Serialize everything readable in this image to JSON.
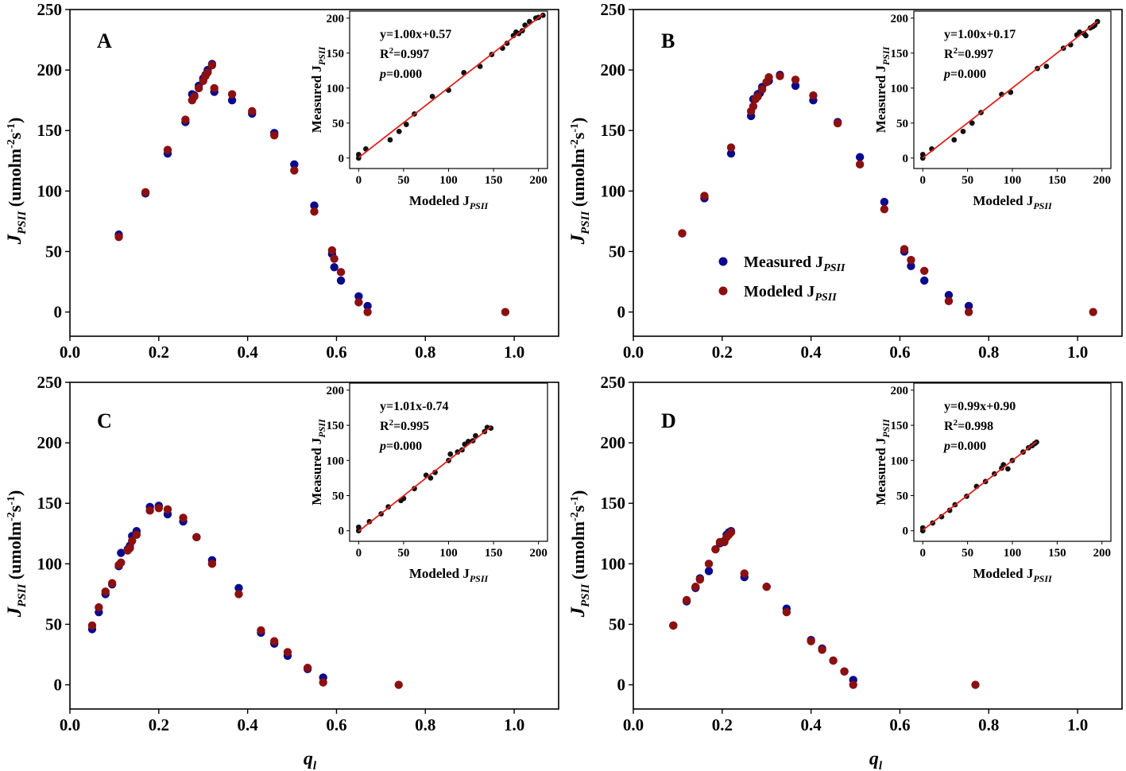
{
  "colors": {
    "measured": "#0a0a8c",
    "modeled": "#8b1010",
    "inset_points": "#111111",
    "fit_line": "#e0201c"
  },
  "axis_text": {
    "ylabel_main": "J",
    "ylabel_sub": "PSII",
    "ylabel_unit_a": " (umolm",
    "ylabel_exp1": "-2",
    "ylabel_unit_b": "s",
    "ylabel_exp2": "-1",
    "ylabel_close": ")",
    "xlabel_main": "q",
    "xlabel_sub": "l",
    "inset_ylabel_main": "Measured J",
    "inset_ylabel_sub": "PSII",
    "inset_xlabel_main": "Modeled J",
    "inset_xlabel_sub": "PSII",
    "eq_r2_a": "R",
    "eq_r2_exp": "2",
    "eq_p_main": "p"
  },
  "legend": {
    "measured_main": "Measured J",
    "measured_sub": "PSII",
    "modeled_main": "Modeled J",
    "modeled_sub": "PSII"
  },
  "chart_data": [
    {
      "type": "scatter",
      "panel": "A",
      "x_ticks": [
        "0.0",
        "0.2",
        "0.4",
        "0.6",
        "0.8",
        "1.0"
      ],
      "y_ticks": [
        "0",
        "50",
        "100",
        "150",
        "200",
        "250"
      ],
      "xlim": [
        0,
        1.1
      ],
      "ylim": [
        -20,
        250
      ],
      "series": [
        {
          "name": "Measured JPSII",
          "x": [
            0.11,
            0.17,
            0.22,
            0.26,
            0.275,
            0.28,
            0.29,
            0.3,
            0.305,
            0.31,
            0.32,
            0.325,
            0.365,
            0.41,
            0.46,
            0.505,
            0.55,
            0.59,
            0.595,
            0.61,
            0.65,
            0.67
          ],
          "y": [
            64,
            98,
            131,
            157,
            180,
            179,
            187,
            193,
            196,
            200,
            205,
            182,
            175,
            164,
            148,
            122,
            88,
            48,
            37,
            26,
            13,
            5
          ]
        },
        {
          "name": "Modeled JPSII",
          "x": [
            0.11,
            0.17,
            0.22,
            0.26,
            0.275,
            0.28,
            0.29,
            0.3,
            0.305,
            0.31,
            0.32,
            0.325,
            0.365,
            0.41,
            0.46,
            0.505,
            0.55,
            0.59,
            0.595,
            0.61,
            0.65,
            0.67,
            0.98
          ],
          "y": [
            62,
            99,
            134,
            159,
            175,
            178,
            185,
            191,
            195,
            198,
            204,
            185,
            180,
            166,
            146,
            117,
            83,
            51,
            44,
            33,
            8,
            0,
            0
          ]
        }
      ],
      "inset": {
        "equation": "y=1.00x+0.57",
        "r2_value": "=0.997",
        "p_value": "=0.000",
        "x_ticks": [
          "0",
          "50",
          "100",
          "150",
          "200"
        ],
        "y_ticks": [
          "0",
          "50",
          "100",
          "150",
          "200"
        ],
        "xlim": [
          -10,
          210
        ],
        "ylim": [
          -15,
          210
        ],
        "x": [
          0,
          0,
          8,
          35,
          45,
          53,
          62,
          82,
          100,
          117,
          135,
          148,
          160,
          165,
          172,
          175,
          178,
          182,
          185,
          190,
          197,
          200,
          205
        ],
        "y": [
          0,
          5,
          13,
          26,
          38,
          48,
          63,
          88,
          97,
          122,
          131,
          148,
          157,
          164,
          175,
          180,
          178,
          182,
          190,
          195,
          200,
          201,
          204
        ],
        "fit": {
          "slope": 1.0,
          "intercept": 0.57
        }
      }
    },
    {
      "type": "scatter",
      "panel": "B",
      "x_ticks": [
        "0.0",
        "0.2",
        "0.4",
        "0.6",
        "0.8",
        "1.0"
      ],
      "y_ticks": [
        "0",
        "50",
        "100",
        "150",
        "200",
        "250"
      ],
      "xlim": [
        0,
        1.1
      ],
      "ylim": [
        -20,
        250
      ],
      "series": [
        {
          "name": "Measured JPSII",
          "x": [
            0.11,
            0.16,
            0.22,
            0.265,
            0.27,
            0.28,
            0.285,
            0.29,
            0.3,
            0.305,
            0.33,
            0.365,
            0.405,
            0.46,
            0.51,
            0.565,
            0.61,
            0.625,
            0.655,
            0.71,
            0.755
          ],
          "y": [
            65,
            94,
            131,
            162,
            176,
            180,
            181,
            186,
            190,
            191,
            196,
            187,
            175,
            157,
            128,
            91,
            50,
            38,
            26,
            14,
            5
          ]
        },
        {
          "name": "Modeled JPSII",
          "x": [
            0.11,
            0.16,
            0.22,
            0.265,
            0.27,
            0.275,
            0.28,
            0.29,
            0.3,
            0.305,
            0.33,
            0.365,
            0.405,
            0.46,
            0.51,
            0.565,
            0.61,
            0.625,
            0.655,
            0.71,
            0.755,
            1.035
          ],
          "y": [
            65,
            96,
            136,
            166,
            170,
            176,
            178,
            184,
            190,
            194,
            195,
            192,
            179,
            156,
            122,
            85,
            52,
            43,
            34,
            9,
            0,
            0
          ]
        }
      ],
      "inset": {
        "equation": "y=1.00x+0.17",
        "r2_value": "=0.997",
        "p_value": "=0.000",
        "x_ticks": [
          "0",
          "50",
          "100",
          "150",
          "200"
        ],
        "y_ticks": [
          "0",
          "50",
          "100",
          "150",
          "200"
        ],
        "xlim": [
          -10,
          210
        ],
        "ylim": [
          -15,
          210
        ],
        "x": [
          0,
          0,
          10,
          35,
          45,
          55,
          65,
          88,
          98,
          128,
          138,
          157,
          165,
          172,
          175,
          180,
          182,
          187,
          190,
          192,
          195
        ],
        "y": [
          0,
          5,
          13,
          26,
          38,
          50,
          65,
          91,
          94,
          128,
          131,
          157,
          162,
          176,
          180,
          178,
          175,
          186,
          188,
          190,
          195
        ],
        "fit": {
          "slope": 1.0,
          "intercept": 0.17
        }
      }
    },
    {
      "type": "scatter",
      "panel": "C",
      "x_ticks": [
        "0.0",
        "0.2",
        "0.4",
        "0.6",
        "0.8",
        "1.0"
      ],
      "y_ticks": [
        "0",
        "50",
        "100",
        "150",
        "200",
        "250"
      ],
      "xlim": [
        0,
        1.1
      ],
      "ylim": [
        -20,
        250
      ],
      "series": [
        {
          "name": "Measured JPSII",
          "x": [
            0.05,
            0.065,
            0.08,
            0.095,
            0.11,
            0.115,
            0.13,
            0.135,
            0.14,
            0.15,
            0.18,
            0.2,
            0.22,
            0.255,
            0.285,
            0.32,
            0.38,
            0.43,
            0.46,
            0.49,
            0.535,
            0.57
          ],
          "y": [
            46,
            60,
            75,
            83,
            98,
            109,
            112,
            115,
            123,
            127,
            147,
            148,
            141,
            135,
            122,
            103,
            80,
            43,
            34,
            24,
            13,
            6
          ]
        },
        {
          "name": "Modeled JPSII",
          "x": [
            0.05,
            0.065,
            0.08,
            0.095,
            0.11,
            0.115,
            0.13,
            0.135,
            0.14,
            0.15,
            0.18,
            0.2,
            0.22,
            0.255,
            0.285,
            0.32,
            0.38,
            0.43,
            0.46,
            0.49,
            0.535,
            0.57,
            0.74
          ],
          "y": [
            49,
            64,
            77,
            84,
            99,
            101,
            111,
            113,
            119,
            124,
            144,
            146,
            145,
            138,
            122,
            100,
            75,
            45,
            36,
            27,
            14,
            2,
            0
          ]
        }
      ],
      "inset": {
        "equation": "y=1.01x-0.74",
        "r2_value": "=0.995",
        "p_value": "=0.000",
        "x_ticks": [
          "0",
          "50",
          "100",
          "150",
          "200"
        ],
        "y_ticks": [
          "0",
          "50",
          "100",
          "150",
          "200"
        ],
        "xlim": [
          -10,
          210
        ],
        "ylim": [
          -15,
          210
        ],
        "x": [
          0,
          0,
          12,
          25,
          33,
          47,
          50,
          62,
          75,
          80,
          85,
          100,
          102,
          110,
          115,
          118,
          122,
          127,
          130,
          140,
          143,
          147
        ],
        "y": [
          0,
          5,
          13,
          24,
          34,
          43,
          46,
          60,
          79,
          75,
          83,
          100,
          109,
          112,
          115,
          123,
          127,
          128,
          135,
          141,
          147,
          146
        ],
        "fit": {
          "slope": 1.01,
          "intercept": -0.74
        }
      }
    },
    {
      "type": "scatter",
      "panel": "D",
      "x_ticks": [
        "0.0",
        "0.2",
        "0.4",
        "0.6",
        "0.8",
        "1.0"
      ],
      "y_ticks": [
        "0",
        "50",
        "100",
        "150",
        "200",
        "250"
      ],
      "xlim": [
        0,
        1.1
      ],
      "ylim": [
        -20,
        250
      ],
      "series": [
        {
          "name": "Measured JPSII",
          "x": [
            0.09,
            0.12,
            0.14,
            0.15,
            0.17,
            0.185,
            0.195,
            0.205,
            0.21,
            0.215,
            0.22,
            0.25,
            0.3,
            0.345,
            0.4,
            0.425,
            0.45,
            0.475,
            0.495
          ],
          "y": [
            49,
            69,
            80,
            88,
            94,
            112,
            117,
            119,
            124,
            126,
            127,
            89,
            81,
            63,
            37,
            30,
            20,
            11,
            4
          ]
        },
        {
          "name": "Modeled JPSII",
          "x": [
            0.09,
            0.12,
            0.14,
            0.15,
            0.17,
            0.185,
            0.195,
            0.205,
            0.21,
            0.215,
            0.22,
            0.25,
            0.3,
            0.345,
            0.4,
            0.425,
            0.45,
            0.475,
            0.495,
            0.77
          ],
          "y": [
            49,
            70,
            81,
            87,
            100,
            112,
            118,
            118,
            122,
            124,
            126,
            92,
            81,
            60,
            36,
            29,
            20,
            11,
            0,
            0
          ]
        }
      ],
      "inset": {
        "equation": "y=0.99x+0.90",
        "r2_value": "=0.998",
        "p_value": "=0.000",
        "x_ticks": [
          "0",
          "50",
          "100",
          "150",
          "200"
        ],
        "y_ticks": [
          "0",
          "50",
          "100",
          "150",
          "200"
        ],
        "xlim": [
          -10,
          210
        ],
        "ylim": [
          -15,
          210
        ],
        "x": [
          0,
          0,
          11,
          21,
          30,
          36,
          49,
          60,
          70,
          80,
          88,
          90,
          95,
          100,
          112,
          118,
          122,
          125,
          127
        ],
        "y": [
          0,
          4,
          11,
          20,
          29,
          37,
          49,
          63,
          70,
          81,
          89,
          94,
          88,
          100,
          112,
          118,
          121,
          124,
          126
        ],
        "fit": {
          "slope": 0.99,
          "intercept": 0.9
        }
      }
    }
  ]
}
